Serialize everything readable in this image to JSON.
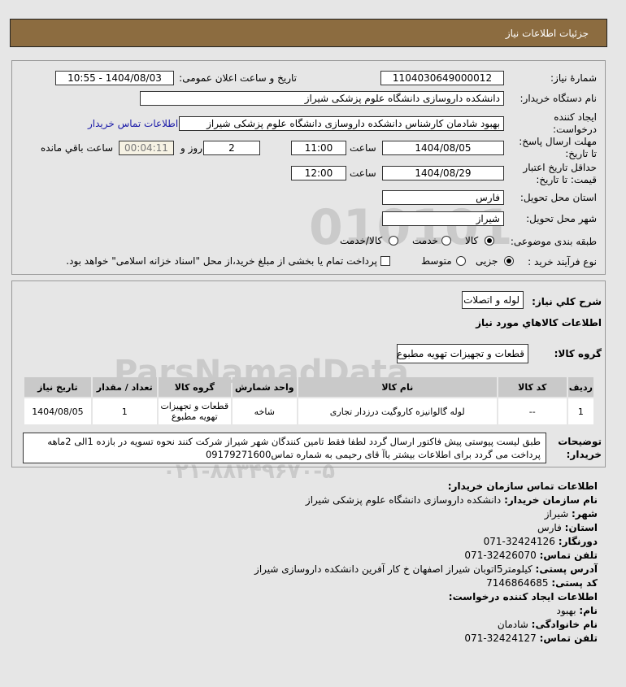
{
  "header": {
    "title": "جزئيات اطلاعات نياز"
  },
  "form": {
    "need_number_label": "شمارهٔ نیاز:",
    "need_number": "1104030649000012",
    "announce_label": "تاریخ و ساعت اعلان عمومی:",
    "announce_value": "1404/08/03 - 10:55",
    "buyer_label": "نام دستگاه خریدار:",
    "buyer_value": "دانشکده داروسازی دانشگاه علوم پزشکی شیراز",
    "creator_label": "ایجاد کننده درخواست:",
    "creator_value": "بهبود  شادمان  کارشناس  دانشکده داروسازی دانشگاه علوم پزشکی شیراز",
    "contact_link": "اطلاعات تماس خریدار",
    "deadline_label": "مهلت ارسال پاسخ: تا تاریخ:",
    "deadline_date": "1404/08/05",
    "time_label": "ساعت",
    "deadline_time": "11:00",
    "days": "2",
    "days_label": "روز و",
    "remaining": "00:04:11",
    "remaining_label": "ساعت باقي مانده",
    "validity_label": "حداقل تاریخ اعتبار قیمت: تا تاریخ:",
    "validity_date": "1404/08/29",
    "validity_time": "12:00",
    "province_label": "استان محل تحویل:",
    "province": "فارس",
    "city_label": "شهر محل تحویل:",
    "city": "شیراز",
    "category_label": "طبقه بندی موضوعی:",
    "category_options": [
      "کالا",
      "خدمت",
      "کالا/خدمت"
    ],
    "category_selected": 0,
    "process_label": "نوع فرآیند خرید :",
    "process_options": [
      "جزیی",
      "متوسط"
    ],
    "process_selected": 0,
    "payment_note": "پرداخت تمام یا بخشی از مبلغ خرید،از محل \"اسناد خزانه اسلامی\" خواهد بود."
  },
  "needs": {
    "summary_label": "شرح کلي نياز:",
    "summary": "لوله و اتصلات",
    "goods_title": "اطلاعات کالاهاي مورد نياز",
    "group_label": "گروه کالا:",
    "group": "قطعات و تجهیزات تهویه مطبوع",
    "columns": [
      "ردیف",
      "کد کالا",
      "نام کالا",
      "واحد شمارش",
      "گروه کالا",
      "تعداد / مقدار",
      "تاریخ نیاز"
    ],
    "rows": [
      [
        "1",
        "--",
        "لوله گالوانیزه کاروگیت درزدار تجاری",
        "شاخه",
        "قطعات و تجهیزات تهویه مطبوع",
        "1",
        "1404/08/05"
      ]
    ],
    "desc_label": "توضیحات خریدار:",
    "desc": "طبق لیست پیوستی پیش فاکتور ارسال گردد لطفا فقط تامین کنندگان شهر شیراز شرکت کنند نحوه تسویه در بازده 1الی 2ماهه پرداخت می گردد برای اطلاعات بیشتر باآ قای رحیمی به شماره تماس09179271600"
  },
  "contact": {
    "title": "اطلاعات تماس سازمان خریدار:",
    "lines": [
      {
        "k": "نام سازمان خریدار:",
        "v": "دانشکده داروسازی دانشگاه علوم پزشکی شیراز"
      },
      {
        "k": "شهر:",
        "v": "شیراز"
      },
      {
        "k": "استان:",
        "v": "فارس"
      },
      {
        "k": "دورنگار:",
        "v": "071-32424126"
      },
      {
        "k": "تلفن تماس:",
        "v": "071-32426070"
      },
      {
        "k": "آدرس پستی:",
        "v": "کیلومتر5اتوبان شیراز اصفهان خ کار آفرین دانشکده داروسازی شیراز"
      },
      {
        "k": "کد پستی:",
        "v": "7146864685"
      }
    ],
    "creator_title": "اطلاعات ایجاد کننده درخواست:",
    "creator_lines": [
      {
        "k": "نام:",
        "v": "بهبود"
      },
      {
        "k": "نام خانوادگی:",
        "v": "شادمان"
      },
      {
        "k": "تلفن تماس:",
        "v": "071-32424127"
      }
    ]
  },
  "watermark": {
    "text1": "ParsNamadData",
    "text2": "010101",
    "text3": "۰۲۱-۸۸۳۴۹۶۷۰-۵"
  }
}
